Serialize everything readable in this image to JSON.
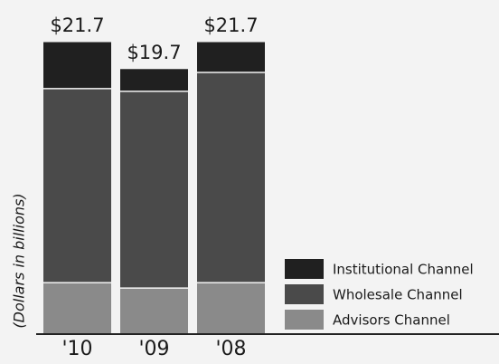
{
  "chart_data": {
    "type": "stacked_bar",
    "y_label": "(Dollars in billions)",
    "categories": [
      "'10",
      "'09",
      "'08"
    ],
    "series": [
      {
        "name": "Advisors Channel",
        "color": "#8a8a8a",
        "values": [
          3.8,
          3.4,
          3.8
        ]
      },
      {
        "name": "Wholesale Channel",
        "color": "#4a4a4a",
        "values": [
          14.4,
          14.6,
          15.6
        ]
      },
      {
        "name": "Institutional Channel",
        "color": "#202020",
        "values": [
          3.5,
          1.7,
          2.3
        ]
      }
    ],
    "totals": {
      "values": [
        21.7,
        19.7,
        21.7
      ],
      "value_labels": [
        "$21.7",
        "$19.7",
        "$21.7"
      ]
    }
  }
}
